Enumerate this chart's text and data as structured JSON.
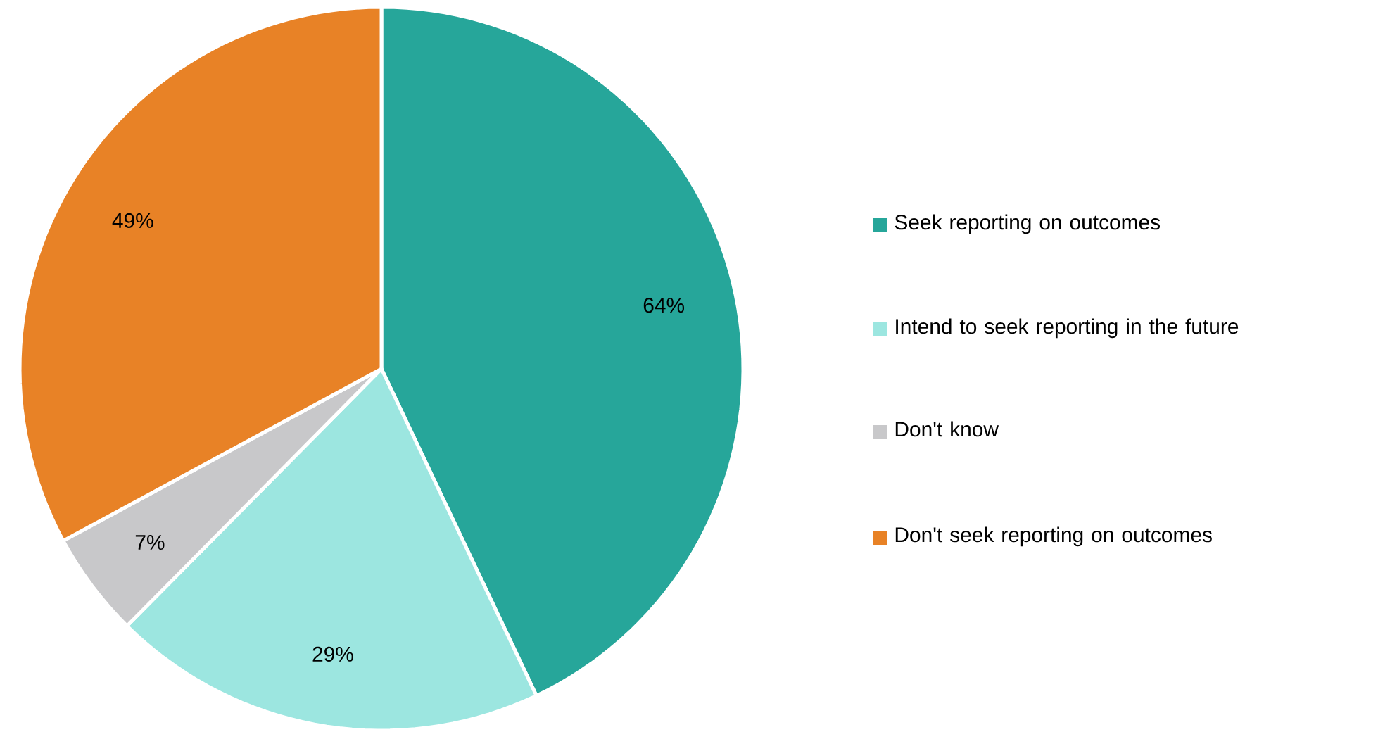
{
  "chart_data": {
    "type": "pie",
    "categories": [
      "Seek reporting on outcomes",
      "Intend to seek reporting in the future",
      "Don't know",
      "Don't seek reporting on outcomes"
    ],
    "values": [
      64,
      29,
      7,
      49
    ],
    "colors": [
      "#26a69a",
      "#9ce6e0",
      "#c8c8ca",
      "#e88226"
    ],
    "value_labels": [
      "64%",
      "29%",
      "7%",
      "49%"
    ],
    "legend": "right"
  }
}
